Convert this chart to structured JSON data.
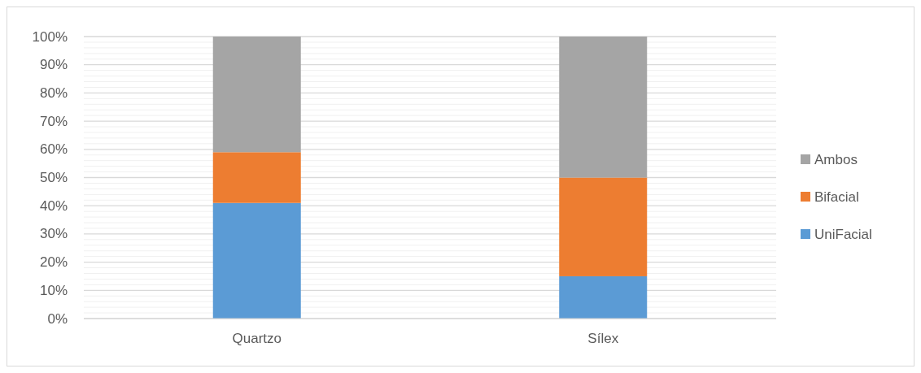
{
  "chart_data": {
    "type": "bar",
    "stacked": true,
    "categories": [
      "Quartzo",
      "Sílex"
    ],
    "series": [
      {
        "name": "UniFacial",
        "color": "#5b9bd5",
        "values": [
          41,
          15
        ]
      },
      {
        "name": "Bifacial",
        "color": "#ed7d31",
        "values": [
          18,
          35
        ]
      },
      {
        "name": "Ambos",
        "color": "#a5a5a5",
        "values": [
          41,
          50
        ]
      }
    ],
    "ylim": [
      0,
      100
    ],
    "yticks": [
      {
        "value": 0,
        "label": "0%"
      },
      {
        "value": 2,
        "label": null
      },
      {
        "value": 4,
        "label": null
      },
      {
        "value": 6,
        "label": null
      },
      {
        "value": 8,
        "label": null
      },
      {
        "value": 10,
        "label": "10%"
      },
      {
        "value": 12,
        "label": null
      },
      {
        "value": 14,
        "label": null
      },
      {
        "value": 16,
        "label": null
      },
      {
        "value": 18,
        "label": null
      },
      {
        "value": 20,
        "label": "20%"
      },
      {
        "value": 22,
        "label": null
      },
      {
        "value": 24,
        "label": null
      },
      {
        "value": 26,
        "label": null
      },
      {
        "value": 28,
        "label": null
      },
      {
        "value": 30,
        "label": "30%"
      },
      {
        "value": 32,
        "label": null
      },
      {
        "value": 34,
        "label": null
      },
      {
        "value": 36,
        "label": null
      },
      {
        "value": 38,
        "label": null
      },
      {
        "value": 40,
        "label": "40%"
      },
      {
        "value": 42,
        "label": null
      },
      {
        "value": 44,
        "label": null
      },
      {
        "value": 46,
        "label": null
      },
      {
        "value": 48,
        "label": null
      },
      {
        "value": 50,
        "label": "50%"
      },
      {
        "value": 52,
        "label": null
      },
      {
        "value": 54,
        "label": null
      },
      {
        "value": 56,
        "label": null
      },
      {
        "value": 58,
        "label": null
      },
      {
        "value": 60,
        "label": "60%"
      },
      {
        "value": 62,
        "label": null
      },
      {
        "value": 64,
        "label": null
      },
      {
        "value": 66,
        "label": null
      },
      {
        "value": 68,
        "label": null
      },
      {
        "value": 70,
        "label": "70%"
      },
      {
        "value": 72,
        "label": null
      },
      {
        "value": 74,
        "label": null
      },
      {
        "value": 76,
        "label": null
      },
      {
        "value": 78,
        "label": null
      },
      {
        "value": 80,
        "label": "80%"
      },
      {
        "value": 82,
        "label": null
      },
      {
        "value": 84,
        "label": null
      },
      {
        "value": 86,
        "label": null
      },
      {
        "value": 88,
        "label": null
      },
      {
        "value": 90,
        "label": "90%"
      },
      {
        "value": 92,
        "label": null
      },
      {
        "value": 94,
        "label": null
      },
      {
        "value": 96,
        "label": null
      },
      {
        "value": 98,
        "label": null
      },
      {
        "value": 100,
        "label": "100%"
      }
    ],
    "grid": "y",
    "legend": "right"
  }
}
